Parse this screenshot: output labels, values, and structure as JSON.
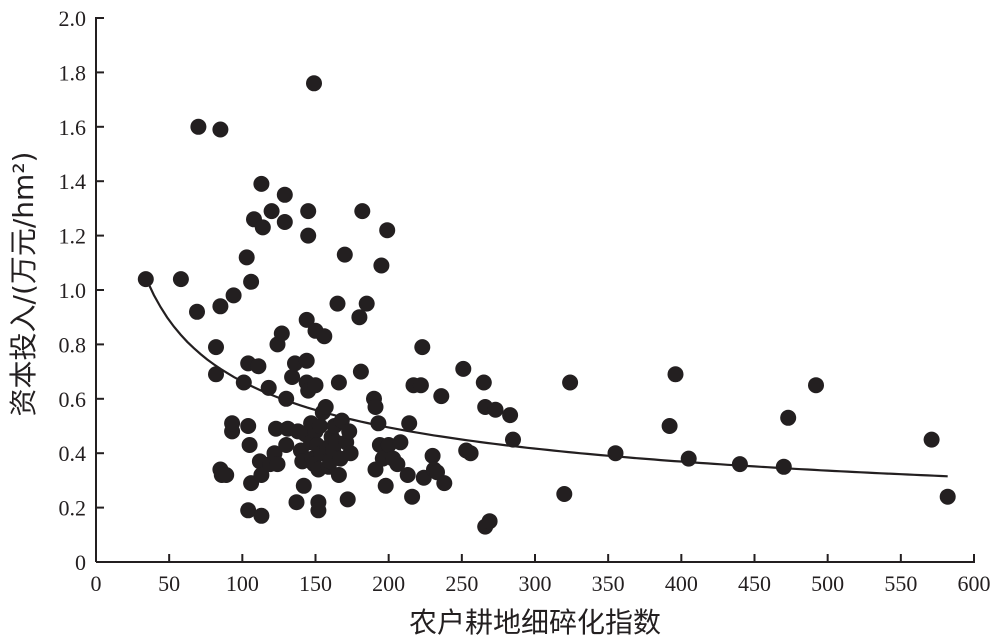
{
  "chart_data": {
    "type": "scatter",
    "xlabel": "农户耕地细碎化指数",
    "ylabel": "资本投入/(万元/hm²)",
    "xlim": [
      0,
      600
    ],
    "ylim": [
      0,
      2.0
    ],
    "x_ticks": [
      "0",
      "50",
      "100",
      "150",
      "200",
      "250",
      "300",
      "350",
      "400",
      "450",
      "500",
      "550",
      "600"
    ],
    "y_ticks": [
      "0",
      "0.2",
      "0.4",
      "0.6",
      "0.8",
      "1.0",
      "1.2",
      "1.4",
      "1.6",
      "1.8",
      "2.0"
    ],
    "grid": false,
    "series": [
      {
        "points": [
          [
            34,
            1.04
          ],
          [
            58,
            1.04
          ],
          [
            70,
            1.6
          ],
          [
            85,
            1.59
          ],
          [
            69,
            0.92
          ],
          [
            85,
            0.94
          ],
          [
            94,
            0.98
          ],
          [
            82,
            0.79
          ],
          [
            82,
            0.69
          ],
          [
            85,
            0.34
          ],
          [
            86,
            0.32
          ],
          [
            89,
            0.32
          ],
          [
            93,
            0.48
          ],
          [
            93,
            0.51
          ],
          [
            101,
            0.66
          ],
          [
            103,
            1.12
          ],
          [
            104,
            0.73
          ],
          [
            106,
            1.03
          ],
          [
            108,
            1.26
          ],
          [
            111,
            0.72
          ],
          [
            113,
            1.39
          ],
          [
            114,
            1.23
          ],
          [
            120,
            1.29
          ],
          [
            118,
            0.64
          ],
          [
            124,
            0.8
          ],
          [
            127,
            0.84
          ],
          [
            129,
            1.35
          ],
          [
            129,
            1.25
          ],
          [
            130,
            0.6
          ],
          [
            104,
            0.5
          ],
          [
            105,
            0.43
          ],
          [
            106,
            0.29
          ],
          [
            104,
            0.19
          ],
          [
            113,
            0.17
          ],
          [
            112,
            0.37
          ],
          [
            113,
            0.32
          ],
          [
            119,
            0.36
          ],
          [
            122,
            0.4
          ],
          [
            124,
            0.36
          ],
          [
            123,
            0.49
          ],
          [
            130,
            0.43
          ],
          [
            131,
            0.49
          ],
          [
            134,
            0.68
          ],
          [
            136,
            0.73
          ],
          [
            138,
            0.48
          ],
          [
            137,
            0.22
          ],
          [
            140,
            0.41
          ],
          [
            141,
            0.37
          ],
          [
            142,
            0.28
          ],
          [
            143,
            0.47
          ],
          [
            144,
            0.66
          ],
          [
            145,
            0.63
          ],
          [
            144,
            0.74
          ],
          [
            144,
            0.89
          ],
          [
            145,
            1.29
          ],
          [
            145,
            1.2
          ],
          [
            147,
            0.51
          ],
          [
            147,
            0.44
          ],
          [
            148,
            0.38
          ],
          [
            149,
            0.36
          ],
          [
            150,
            0.85
          ],
          [
            150,
            0.65
          ],
          [
            149,
            1.76
          ],
          [
            150,
            0.48
          ],
          [
            151,
            0.43
          ],
          [
            152,
            0.34
          ],
          [
            152,
            0.22
          ],
          [
            152,
            0.19
          ],
          [
            153,
            0.5
          ],
          [
            154,
            0.4
          ],
          [
            155,
            0.55
          ],
          [
            156,
            0.83
          ],
          [
            157,
            0.57
          ],
          [
            158,
            0.42
          ],
          [
            159,
            0.35
          ],
          [
            160,
            0.37
          ],
          [
            161,
            0.46
          ],
          [
            162,
            0.41
          ],
          [
            163,
            0.5
          ],
          [
            164,
            0.44
          ],
          [
            165,
            0.95
          ],
          [
            166,
            0.66
          ],
          [
            166,
            0.32
          ],
          [
            167,
            0.38
          ],
          [
            168,
            0.52
          ],
          [
            170,
            1.13
          ],
          [
            171,
            0.44
          ],
          [
            172,
            0.23
          ],
          [
            173,
            0.48
          ],
          [
            174,
            0.4
          ],
          [
            180,
            0.9
          ],
          [
            181,
            0.7
          ],
          [
            182,
            1.29
          ],
          [
            185,
            0.95
          ],
          [
            190,
            0.6
          ],
          [
            191,
            0.57
          ],
          [
            191,
            0.34
          ],
          [
            193,
            0.51
          ],
          [
            194,
            0.43
          ],
          [
            195,
            1.09
          ],
          [
            196,
            0.38
          ],
          [
            198,
            0.28
          ],
          [
            199,
            1.22
          ],
          [
            200,
            0.43
          ],
          [
            203,
            0.38
          ],
          [
            206,
            0.36
          ],
          [
            208,
            0.44
          ],
          [
            213,
            0.32
          ],
          [
            214,
            0.51
          ],
          [
            216,
            0.24
          ],
          [
            217,
            0.65
          ],
          [
            222,
            0.65
          ],
          [
            223,
            0.79
          ],
          [
            224,
            0.31
          ],
          [
            230,
            0.39
          ],
          [
            231,
            0.34
          ],
          [
            233,
            0.33
          ],
          [
            236,
            0.61
          ],
          [
            238,
            0.29
          ],
          [
            251,
            0.71
          ],
          [
            253,
            0.41
          ],
          [
            256,
            0.4
          ],
          [
            265,
            0.66
          ],
          [
            266,
            0.57
          ],
          [
            266,
            0.13
          ],
          [
            269,
            0.15
          ],
          [
            273,
            0.56
          ],
          [
            283,
            0.54
          ],
          [
            285,
            0.45
          ],
          [
            320,
            0.25
          ],
          [
            324,
            0.66
          ],
          [
            355,
            0.4
          ],
          [
            392,
            0.5
          ],
          [
            396,
            0.69
          ],
          [
            405,
            0.38
          ],
          [
            440,
            0.36
          ],
          [
            470,
            0.35
          ],
          [
            473,
            0.53
          ],
          [
            492,
            0.65
          ],
          [
            571,
            0.45
          ],
          [
            582,
            0.24
          ]
        ]
      }
    ],
    "fit_curve": {
      "form": "power",
      "points": [
        [
          35,
          0.96
        ],
        [
          100,
          0.7
        ],
        [
          200,
          0.54
        ],
        [
          300,
          0.43
        ],
        [
          400,
          0.37
        ],
        [
          500,
          0.33
        ],
        [
          582,
          0.29
        ]
      ]
    }
  }
}
